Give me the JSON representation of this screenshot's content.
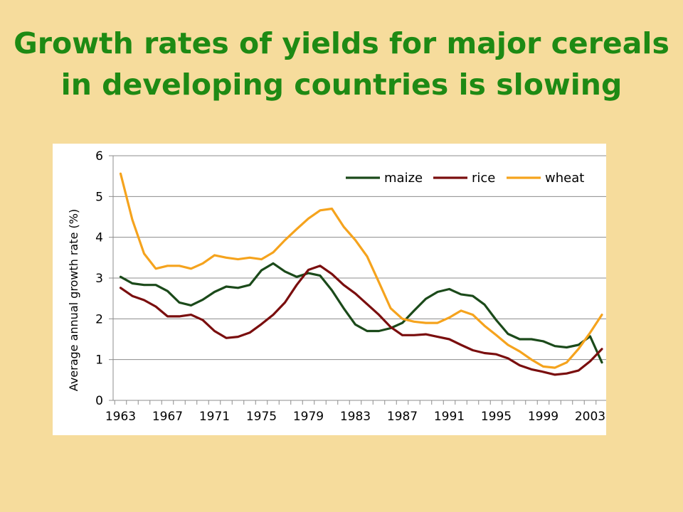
{
  "slide": {
    "title_line1": "Growth rates of yields for major cereals",
    "title_line2": "in developing countries is slowing"
  },
  "chart_data": {
    "type": "line",
    "title": "Growth rates of yields for major cereals in developing countries is slowing",
    "ylabel": "Average annual growth rate (%)",
    "xlabel": "",
    "ylim": [
      0,
      6
    ],
    "yticks": [
      0,
      1,
      2,
      3,
      4,
      5,
      6
    ],
    "x": [
      1963,
      1964,
      1965,
      1966,
      1967,
      1968,
      1969,
      1970,
      1971,
      1972,
      1973,
      1974,
      1975,
      1976,
      1977,
      1978,
      1979,
      1980,
      1981,
      1982,
      1983,
      1984,
      1985,
      1986,
      1987,
      1988,
      1989,
      1990,
      1991,
      1992,
      1993,
      1994,
      1995,
      1996,
      1997,
      1998,
      1999,
      2000,
      2001,
      2002,
      2003,
      2004
    ],
    "xtick_labels": [
      "1963",
      "1967",
      "1971",
      "1975",
      "1979",
      "1983",
      "1987",
      "1991",
      "1995",
      "1999",
      "2003"
    ],
    "grid": "horizontal",
    "legend_position": "top-right",
    "series": [
      {
        "name": "maize",
        "color": "#1b4a1a",
        "values": [
          3.03,
          2.87,
          2.83,
          2.83,
          2.68,
          2.4,
          2.33,
          2.47,
          2.66,
          2.79,
          2.76,
          2.83,
          3.19,
          3.36,
          3.16,
          3.03,
          3.12,
          3.06,
          2.7,
          2.26,
          1.86,
          1.7,
          1.7,
          1.77,
          1.9,
          2.2,
          2.49,
          2.66,
          2.73,
          2.6,
          2.56,
          2.35,
          1.97,
          1.63,
          1.5,
          1.5,
          1.45,
          1.33,
          1.3,
          1.36,
          1.57,
          0.93
        ]
      },
      {
        "name": "rice",
        "color": "#7a0e0e",
        "values": [
          2.76,
          2.56,
          2.46,
          2.3,
          2.06,
          2.06,
          2.1,
          1.97,
          1.7,
          1.53,
          1.56,
          1.66,
          1.87,
          2.1,
          2.4,
          2.83,
          3.2,
          3.3,
          3.1,
          2.83,
          2.62,
          2.36,
          2.1,
          1.8,
          1.6,
          1.6,
          1.62,
          1.56,
          1.5,
          1.36,
          1.23,
          1.16,
          1.13,
          1.03,
          0.86,
          0.76,
          0.7,
          0.63,
          0.66,
          0.73,
          0.96,
          1.26
        ]
      },
      {
        "name": "wheat",
        "color": "#f5a31d",
        "values": [
          5.56,
          4.43,
          3.6,
          3.23,
          3.3,
          3.3,
          3.23,
          3.36,
          3.56,
          3.5,
          3.46,
          3.5,
          3.46,
          3.63,
          3.93,
          4.2,
          4.46,
          4.66,
          4.7,
          4.26,
          3.93,
          3.53,
          2.9,
          2.26,
          2.0,
          1.93,
          1.9,
          1.9,
          2.03,
          2.2,
          2.1,
          1.83,
          1.6,
          1.36,
          1.2,
          1.0,
          0.83,
          0.8,
          0.93,
          1.26,
          1.66,
          2.1
        ]
      }
    ]
  }
}
